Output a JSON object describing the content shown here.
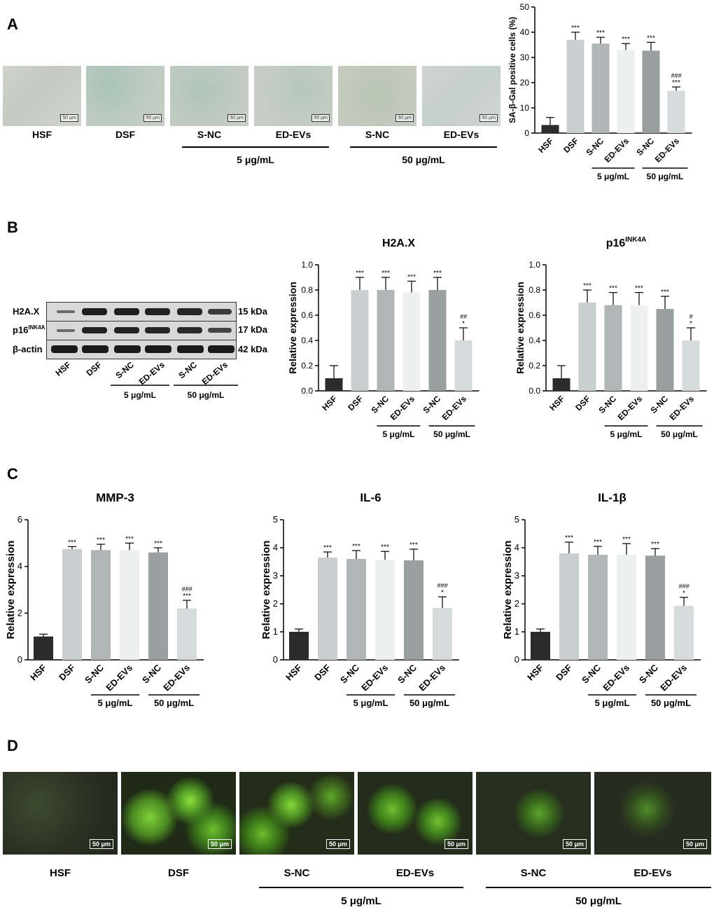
{
  "panels": {
    "a": "A",
    "b": "B",
    "c": "C",
    "d": "D"
  },
  "sa_gal_images": {
    "labels": [
      "HSF",
      "DSF",
      "S-NC",
      "ED-EVs",
      "S-NC",
      "ED-EVs"
    ],
    "scale": "50 μm",
    "group_5": "5 μg/mL",
    "group_50": "50 μg/mL"
  },
  "blot": {
    "rows": [
      "H2A.X",
      "p16",
      "β-actin"
    ],
    "row_sup": "INK4A",
    "sizes": [
      "15 kDa",
      "17 kDa",
      "42 kDa"
    ],
    "lanes": [
      "HSF",
      "DSF",
      "S-NC",
      "ED-EVs",
      "S-NC",
      "ED-EVs"
    ],
    "group_5": "5 μg/mL",
    "group_50": "50 μg/mL"
  },
  "fluor_images": {
    "labels": [
      "HSF",
      "DSF",
      "S-NC",
      "ED-EVs",
      "S-NC",
      "ED-EVs"
    ],
    "scale": "50 μm",
    "group_5": "5 μg/mL",
    "group_50": "50 μg/mL"
  },
  "bar_colors": [
    "#2b2b2b",
    "#c9cfcf",
    "#b0b6b6",
    "#eef0f0",
    "#9aa09f",
    "#d6dbdb"
  ],
  "chart_data": [
    {
      "id": "sagal",
      "type": "bar",
      "title": "",
      "xlabel": "",
      "ylabel": "SA-β-Gal positive cells (%)",
      "ylim": [
        0,
        50
      ],
      "yticks": [
        "0",
        "10",
        "20",
        "30",
        "40",
        "50"
      ],
      "categories": [
        "HSF",
        "DSF",
        "S-NC",
        "ED-EVs",
        "S-NC",
        "ED-EVs"
      ],
      "values": [
        3.2,
        37,
        35.5,
        33,
        32.7,
        16.8
      ],
      "errors": [
        3.0,
        3.0,
        2.5,
        2.5,
        3.3,
        1.5
      ],
      "annotations": [
        "",
        "***",
        "***",
        "***",
        "***",
        "***"
      ],
      "annotations2": [
        "",
        "",
        "",
        "",
        "",
        "###"
      ],
      "groups": [
        "5 μg/mL",
        "50 μg/mL"
      ]
    },
    {
      "id": "h2ax",
      "type": "bar",
      "title": "H2A.X",
      "title_sup": "",
      "xlabel": "",
      "ylabel": "Relative expression",
      "ylim": [
        0,
        1.0
      ],
      "yticks": [
        "0.0",
        "0.2",
        "0.4",
        "0.6",
        "0.8",
        "1.0"
      ],
      "categories": [
        "HSF",
        "DSF",
        "S-NC",
        "ED-EVs",
        "S-NC",
        "ED-EVs"
      ],
      "values": [
        0.1,
        0.8,
        0.8,
        0.78,
        0.8,
        0.4
      ],
      "errors": [
        0.1,
        0.1,
        0.1,
        0.09,
        0.1,
        0.1
      ],
      "annotations": [
        "",
        "***",
        "***",
        "***",
        "***",
        "*"
      ],
      "annotations2": [
        "",
        "",
        "",
        "",
        "",
        "##"
      ],
      "groups": [
        "5 μg/mL",
        "50 μg/mL"
      ]
    },
    {
      "id": "p16",
      "type": "bar",
      "title": "p16",
      "title_sup": "INK4A",
      "xlabel": "",
      "ylabel": "Relative expression",
      "ylim": [
        0,
        1.0
      ],
      "yticks": [
        "0.0",
        "0.2",
        "0.4",
        "0.6",
        "0.8",
        "1.0"
      ],
      "categories": [
        "HSF",
        "DSF",
        "S-NC",
        "ED-EVs",
        "S-NC",
        "ED-EVs"
      ],
      "values": [
        0.1,
        0.7,
        0.68,
        0.68,
        0.65,
        0.4
      ],
      "errors": [
        0.1,
        0.1,
        0.1,
        0.1,
        0.1,
        0.1
      ],
      "annotations": [
        "",
        "***",
        "***",
        "***",
        "***",
        "*"
      ],
      "annotations2": [
        "",
        "",
        "",
        "",
        "",
        "#"
      ],
      "groups": [
        "5 μg/mL",
        "50 μg/mL"
      ]
    },
    {
      "id": "mmp3",
      "type": "bar",
      "title": "MMP-3",
      "title_sup": "",
      "xlabel": "",
      "ylabel": "Relative expression",
      "ylim": [
        0,
        6
      ],
      "yticks": [
        "0",
        "2",
        "4",
        "6"
      ],
      "categories": [
        "HSF",
        "DSF",
        "S-NC",
        "ED-EVs",
        "S-NC",
        "ED-EVs"
      ],
      "values": [
        1.0,
        4.75,
        4.7,
        4.7,
        4.6,
        2.2
      ],
      "errors": [
        0.1,
        0.1,
        0.25,
        0.3,
        0.2,
        0.35
      ],
      "annotations": [
        "",
        "***",
        "***",
        "***",
        "***",
        "***"
      ],
      "annotations2": [
        "",
        "",
        "",
        "",
        "",
        "###"
      ],
      "groups": [
        "5 μg/mL",
        "50 μg/mL"
      ]
    },
    {
      "id": "il6",
      "type": "bar",
      "title": "IL-6",
      "title_sup": "",
      "xlabel": "",
      "ylabel": "Relative expression",
      "ylim": [
        0,
        5
      ],
      "yticks": [
        "0",
        "1",
        "2",
        "3",
        "4",
        "5"
      ],
      "categories": [
        "HSF",
        "DSF",
        "S-NC",
        "ED-EVs",
        "S-NC",
        "ED-EVs"
      ],
      "values": [
        1.0,
        3.65,
        3.6,
        3.57,
        3.55,
        1.85
      ],
      "errors": [
        0.1,
        0.2,
        0.3,
        0.3,
        0.4,
        0.4
      ],
      "annotations": [
        "",
        "***",
        "***",
        "***",
        "***",
        "*"
      ],
      "annotations2": [
        "",
        "",
        "",
        "",
        "",
        "###"
      ],
      "groups": [
        "5 μg/mL",
        "50 μg/mL"
      ]
    },
    {
      "id": "il1b",
      "type": "bar",
      "title": "IL-1β",
      "title_sup": "",
      "xlabel": "",
      "ylabel": "Relative expression",
      "ylim": [
        0,
        5
      ],
      "yticks": [
        "0",
        "1",
        "2",
        "3",
        "4",
        "5"
      ],
      "categories": [
        "HSF",
        "DSF",
        "S-NC",
        "ED-EVs",
        "S-NC",
        "ED-EVs"
      ],
      "values": [
        1.0,
        3.8,
        3.75,
        3.75,
        3.72,
        1.93
      ],
      "errors": [
        0.1,
        0.4,
        0.3,
        0.4,
        0.25,
        0.3
      ],
      "annotations": [
        "",
        "***",
        "***",
        "***",
        "***",
        "*"
      ],
      "annotations2": [
        "",
        "",
        "",
        "",
        "",
        "###"
      ],
      "groups": [
        "5 μg/mL",
        "50 μg/mL"
      ]
    }
  ]
}
